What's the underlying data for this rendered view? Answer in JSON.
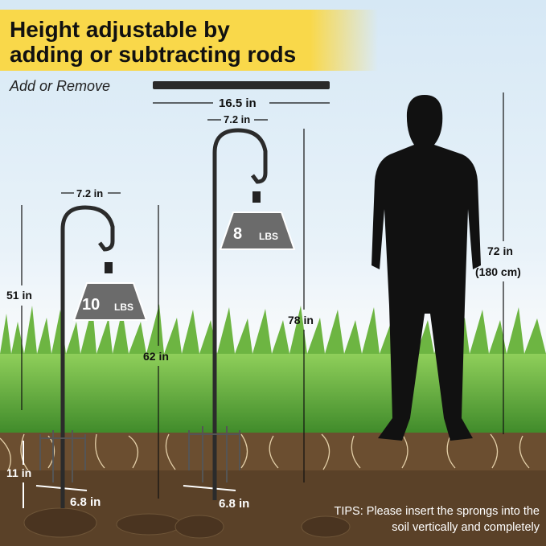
{
  "title": {
    "line1": "Height adjustable by",
    "line2": "adding or subtracting rods"
  },
  "subtitle": "Add or Remove",
  "rod": {
    "length": "16.5 in"
  },
  "hook_tall": {
    "width": "7.2 in",
    "weight": "8",
    "weight_unit": "LBS",
    "height": "78 in",
    "above_ground": "62 in",
    "prong_width": "6.8 in"
  },
  "hook_short": {
    "width": "7.2 in",
    "weight": "10",
    "weight_unit": "LBS",
    "above_ground": "51 in",
    "prong_depth": "11 in",
    "prong_width": "6.8 in"
  },
  "person": {
    "height": "72 in",
    "height_metric": "(180 cm)"
  },
  "tips": {
    "line1": "TIPS: Please insert the sprongs into the",
    "line2": "soil vertically and completely"
  },
  "colors": {
    "banner": "#f9d84a",
    "grass": "#5fa33a",
    "soil": "#5a4128",
    "metal": "#2b2b2b",
    "weight": "#6b6b6b"
  }
}
